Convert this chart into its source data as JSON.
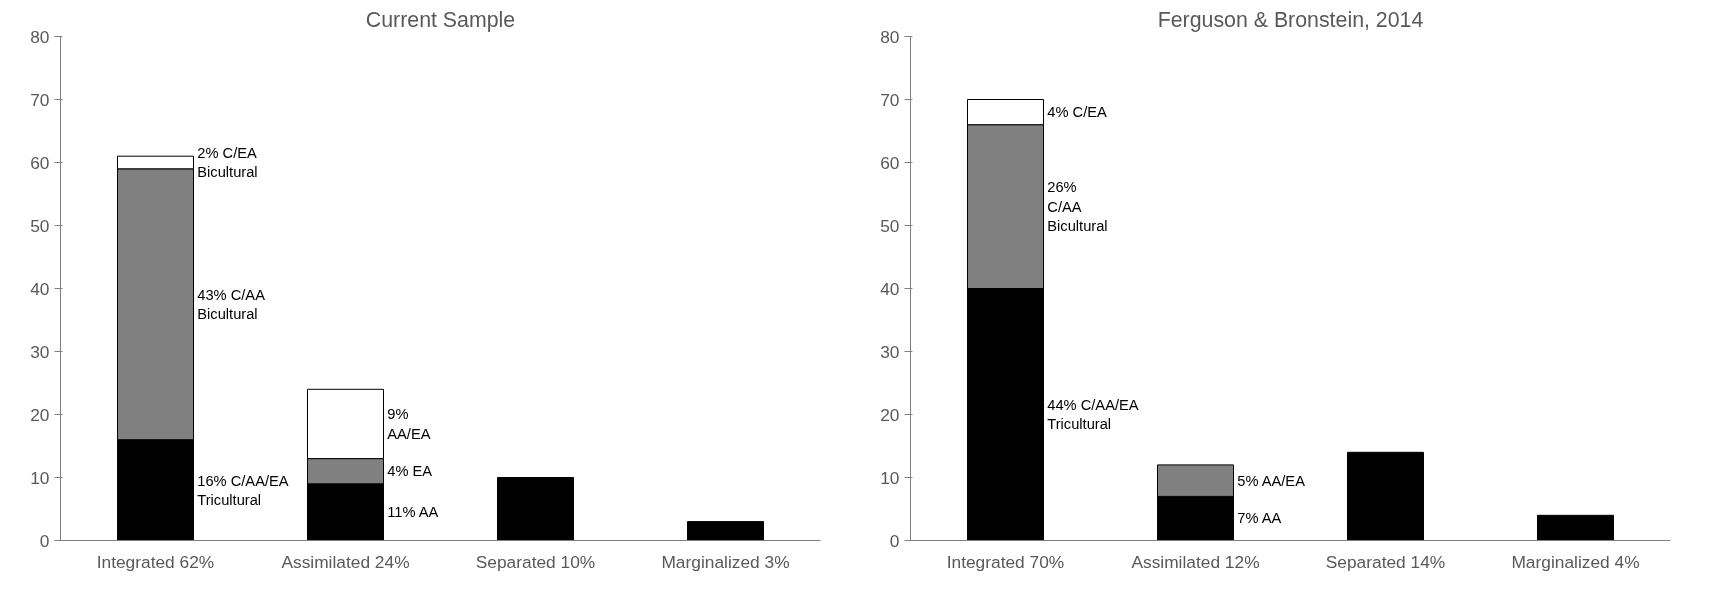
{
  "chart_data": [
    {
      "type": "bar",
      "title": "Current Sample",
      "stacked": true,
      "categories": [
        "Integrated 62%",
        "Assimilated 24%",
        "Separated 10%",
        "Marginalized 3%"
      ],
      "ylim": [
        0,
        80
      ],
      "yticks": [
        0,
        10,
        20,
        30,
        40,
        50,
        60,
        70,
        80
      ],
      "grid": false,
      "series": [
        {
          "color": "#000000",
          "values": [
            16,
            9,
            10,
            3
          ]
        },
        {
          "color": "#808080",
          "values": [
            43,
            4,
            null,
            null
          ]
        },
        {
          "color": "#ffffff",
          "values": [
            2,
            11,
            null,
            null
          ]
        }
      ],
      "annotations": [
        "2% C/EA\nBicultural",
        "43% C/AA\nBicultural",
        "16% C/AA/EA\nTricultural",
        "9%\nAA/EA",
        "4% EA",
        "11% AA"
      ]
    },
    {
      "type": "bar",
      "title": "Ferguson & Bronstein, 2014",
      "stacked": true,
      "categories": [
        "Integrated 70%",
        "Assimilated 12%",
        "Separated 14%",
        "Marginalized 4%"
      ],
      "ylim": [
        0,
        80
      ],
      "yticks": [
        0,
        10,
        20,
        30,
        40,
        50,
        60,
        70,
        80
      ],
      "grid": false,
      "series": [
        {
          "color": "#000000",
          "values": [
            40,
            7,
            14,
            4
          ]
        },
        {
          "color": "#808080",
          "values": [
            26,
            5,
            null,
            null
          ]
        },
        {
          "color": "#ffffff",
          "values": [
            4,
            null,
            null,
            null
          ]
        }
      ],
      "annotations": [
        "4% C/EA",
        "26%\nC/AA\nBicultural",
        "44% C/AA/EA\nTricultural",
        "5% AA/EA",
        "7% AA"
      ]
    }
  ]
}
